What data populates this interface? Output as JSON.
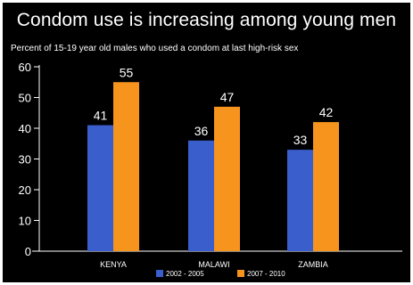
{
  "chart_data": {
    "type": "bar",
    "title": "Condom use is increasing among young men",
    "subtitle": "Percent of 15-19 year old males who used a condom at last high-risk sex",
    "categories": [
      "KENYA",
      "MALAWI",
      "ZAMBIA"
    ],
    "series": [
      {
        "name": "2002 - 2005",
        "values": [
          41,
          36,
          33
        ],
        "color": "#3a5fcd"
      },
      {
        "name": "2007 - 2010",
        "values": [
          55,
          47,
          42
        ],
        "color": "#f7941d"
      }
    ],
    "ylim": [
      0,
      60
    ],
    "yticks": [
      0,
      10,
      20,
      30,
      40,
      50,
      60
    ],
    "xlabel": "",
    "ylabel": "",
    "grid": false,
    "legend": "bottom-center",
    "background": "#000000",
    "text_color": "#ffffff"
  }
}
